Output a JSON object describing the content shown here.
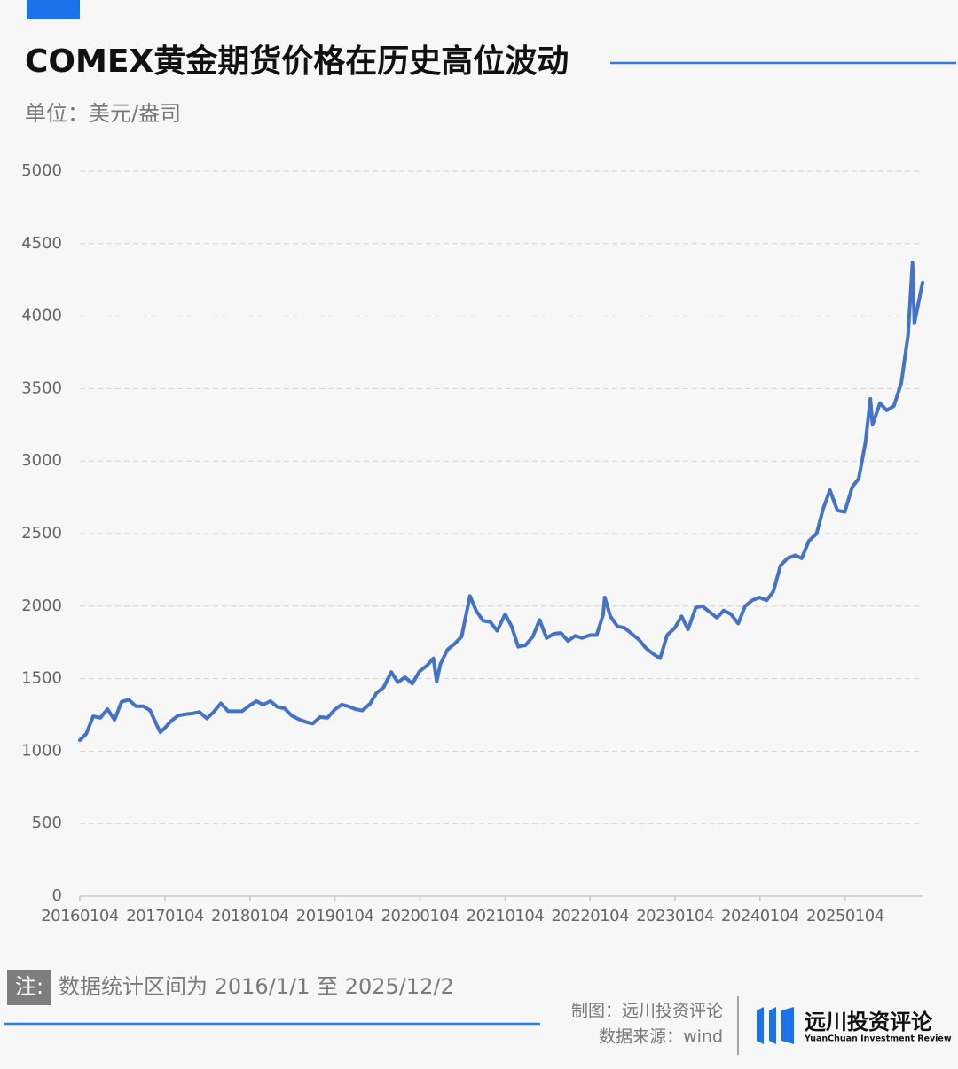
{
  "chart_data": {
    "type": "line",
    "title": "COMEX黄金期货价格在历史高位波动",
    "subtitle": "单位：美元/盎司",
    "x": [
      "20160104",
      "20160201",
      "20160301",
      "20160401",
      "20160502",
      "20160601",
      "20160701",
      "20160801",
      "20160901",
      "20161003",
      "20161101",
      "20161201",
      "20161215",
      "20170103",
      "20170201",
      "20170301",
      "20170403",
      "20170501",
      "20170601",
      "20170703",
      "20170801",
      "20170901",
      "20171002",
      "20171101",
      "20171201",
      "20180102",
      "20180201",
      "20180301",
      "20180402",
      "20180501",
      "20180601",
      "20180702",
      "20180801",
      "20180904",
      "20181001",
      "20181101",
      "20181203",
      "20190102",
      "20190201",
      "20190301",
      "20190401",
      "20190501",
      "20190603",
      "20190701",
      "20190801",
      "20190903",
      "20191001",
      "20191101",
      "20191202",
      "20200102",
      "20200203",
      "20200302",
      "20200316",
      "20200401",
      "20200501",
      "20200601",
      "20200701",
      "20200806",
      "20200901",
      "20201001",
      "20201102",
      "20201201",
      "20210104",
      "20210201",
      "20210301",
      "20210401",
      "20210503",
      "20210601",
      "20210701",
      "20210802",
      "20210901",
      "20211001",
      "20211101",
      "20211201",
      "20220103",
      "20220201",
      "20220301",
      "20220308",
      "20220401",
      "20220502",
      "20220601",
      "20220701",
      "20220801",
      "20220901",
      "20221003",
      "20221101",
      "20221201",
      "20230103",
      "20230201",
      "20230301",
      "20230403",
      "20230501",
      "20230601",
      "20230703",
      "20230801",
      "20230901",
      "20231002",
      "20231101",
      "20231201",
      "20240102",
      "20240201",
      "20240301",
      "20240401",
      "20240501",
      "20240603",
      "20240701",
      "20240801",
      "20240903",
      "20241001",
      "20241030",
      "20241201",
      "20250102",
      "20250203",
      "20250303",
      "20250401",
      "20250422",
      "20250501",
      "20250602",
      "20250701",
      "20250801",
      "20250902",
      "20251001",
      "20251020",
      "20251028",
      "20251103",
      "20251202"
    ],
    "values": [
      1075,
      1120,
      1240,
      1230,
      1290,
      1215,
      1340,
      1355,
      1310,
      1310,
      1280,
      1175,
      1130,
      1160,
      1210,
      1245,
      1255,
      1260,
      1270,
      1225,
      1270,
      1330,
      1275,
      1275,
      1275,
      1315,
      1345,
      1320,
      1345,
      1305,
      1295,
      1245,
      1220,
      1200,
      1190,
      1235,
      1230,
      1285,
      1320,
      1310,
      1290,
      1280,
      1325,
      1400,
      1440,
      1545,
      1475,
      1510,
      1465,
      1550,
      1590,
      1640,
      1480,
      1600,
      1700,
      1740,
      1790,
      2070,
      1970,
      1900,
      1890,
      1830,
      1945,
      1860,
      1720,
      1730,
      1790,
      1905,
      1780,
      1810,
      1815,
      1760,
      1795,
      1780,
      1800,
      1800,
      1940,
      2060,
      1930,
      1860,
      1850,
      1810,
      1770,
      1710,
      1670,
      1640,
      1800,
      1850,
      1930,
      1840,
      1990,
      2000,
      1960,
      1920,
      1970,
      1945,
      1880,
      2000,
      2040,
      2060,
      2040,
      2100,
      2280,
      2330,
      2350,
      2330,
      2450,
      2500,
      2670,
      2800,
      2660,
      2650,
      2820,
      2880,
      3130,
      3430,
      3250,
      3400,
      3350,
      3380,
      3540,
      3870,
      4370,
      3950,
      4000,
      4230
    ],
    "color": "#4472c4",
    "xlim": [
      "20160104",
      "20251202"
    ],
    "xticks": [
      "20160104",
      "20170104",
      "20180104",
      "20190104",
      "20200104",
      "20210104",
      "20220104",
      "20230104",
      "20240104",
      "20250104"
    ],
    "ylim": [
      0,
      5000
    ],
    "yticks": [
      0,
      500,
      1000,
      1500,
      2000,
      2500,
      3000,
      3500,
      4000,
      4500,
      5000
    ],
    "grid": true
  },
  "footer": {
    "note_label": "注:",
    "note": "数据统计区间为 2016/1/1 至 2025/12/2",
    "credit": "制图：远川投资评论",
    "source": "数据来源：wind",
    "logo_cn": "远川投资评论",
    "logo_en": "YuanChuan Investment Review"
  }
}
